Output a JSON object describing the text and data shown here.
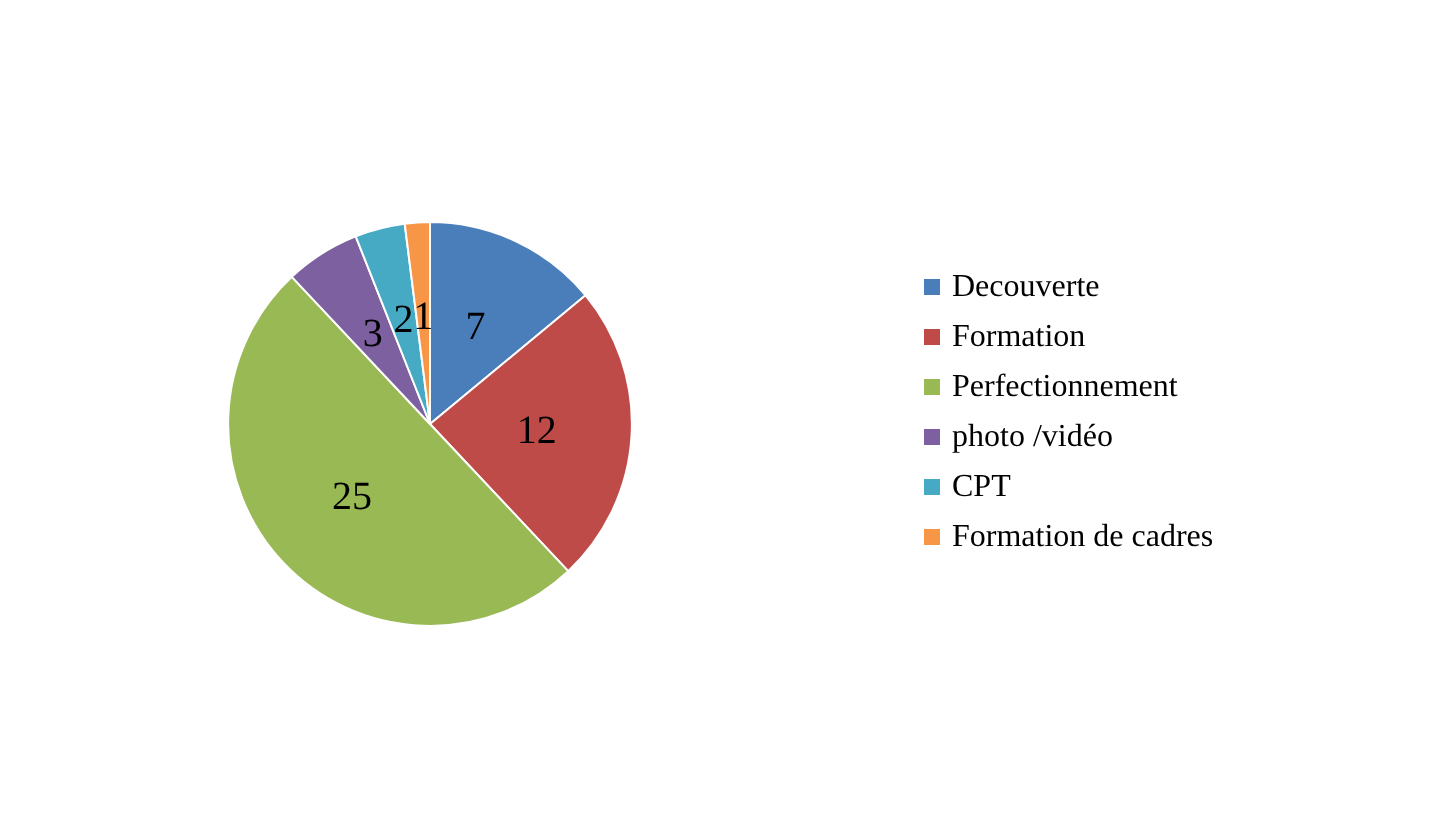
{
  "chart_data": {
    "type": "pie",
    "categories": [
      "Decouverte",
      "Formation",
      "Perfectionnement",
      "photo /vidéo",
      "CPT",
      "Formation de cadres"
    ],
    "values": [
      7,
      12,
      25,
      3,
      2,
      1
    ],
    "colors": [
      "#4a7ebb",
      "#be4b48",
      "#98b954",
      "#7d60a0",
      "#46aac5",
      "#f79646"
    ],
    "data_labels": true,
    "legend": "right"
  }
}
